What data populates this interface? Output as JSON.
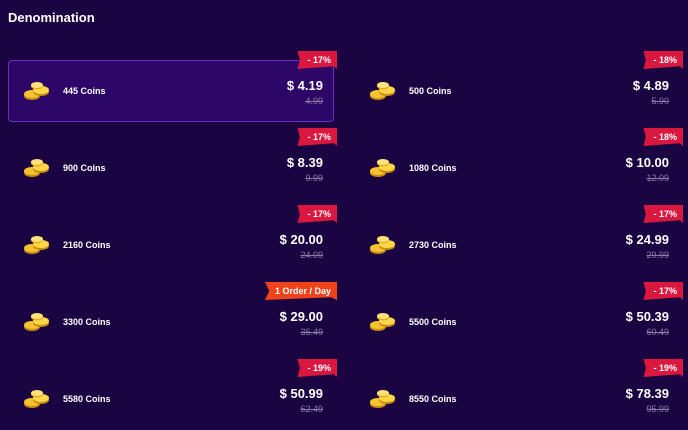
{
  "title": "Denomination",
  "items": [
    {
      "label": "445 Coins",
      "price": "$ 4.19",
      "old": "4.99",
      "badge": "- 17%",
      "selected": true
    },
    {
      "label": "500 Coins",
      "price": "$ 4.89",
      "old": "5.90",
      "badge": "- 18%"
    },
    {
      "label": "900 Coins",
      "price": "$ 8.39",
      "old": "9.99",
      "badge": "- 17%"
    },
    {
      "label": "1080 Coins",
      "price": "$ 10.00",
      "old": "12.09",
      "badge": "- 18%"
    },
    {
      "label": "2160 Coins",
      "price": "$ 20.00",
      "old": "24.09",
      "badge": "- 17%"
    },
    {
      "label": "2730 Coins",
      "price": "$ 24.99",
      "old": "29.99",
      "badge": "- 17%"
    },
    {
      "label": "3300 Coins",
      "price": "$ 29.00",
      "old": "36.49",
      "badge": "1 Order / Day",
      "badge_color": "orange"
    },
    {
      "label": "5500 Coins",
      "price": "$ 50.39",
      "old": "60.49",
      "badge": "- 17%"
    },
    {
      "label": "5580 Coins",
      "price": "$ 50.99",
      "old": "62.49",
      "badge": "- 19%"
    },
    {
      "label": "8550 Coins",
      "price": "$ 78.39",
      "old": "95.99",
      "badge": "- 19%"
    }
  ],
  "icon": "coins-icon"
}
